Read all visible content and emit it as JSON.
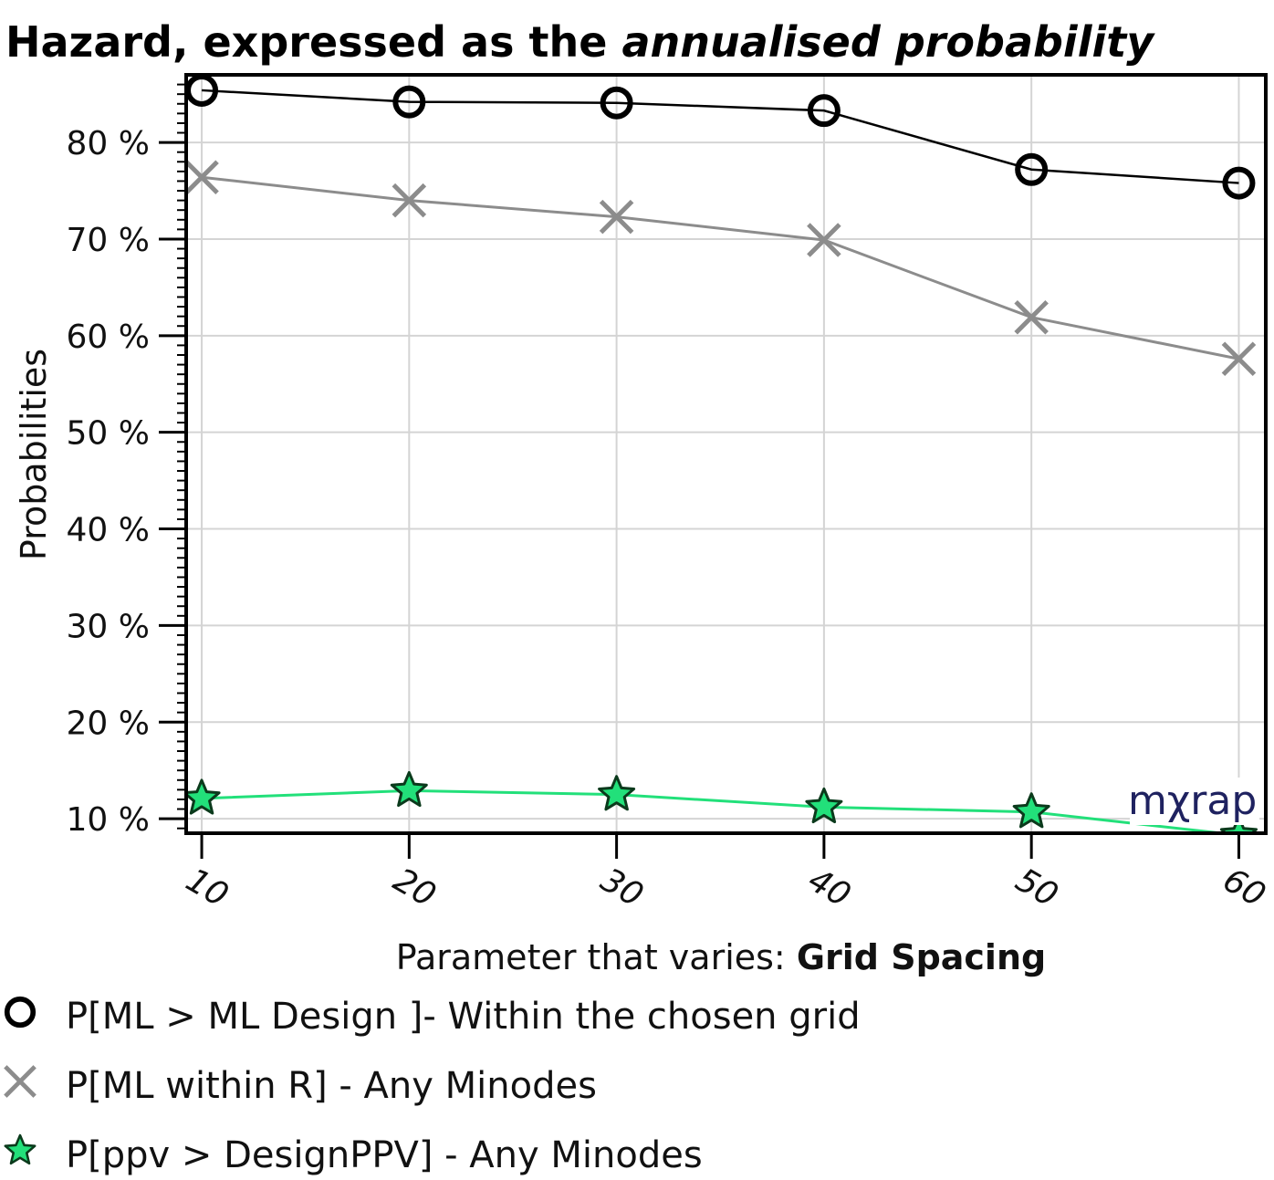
{
  "chart_data": {
    "type": "line",
    "title": "Hazard, expressed as the ",
    "title_italic": "annualised probability",
    "xlabel": "Parameter that varies: ",
    "xlabel_bold": "Grid Spacing",
    "ylabel": "Probabilities",
    "x": [
      10,
      20,
      30,
      40,
      50,
      60
    ],
    "xticks": [
      "10",
      "20",
      "30",
      "40",
      "50",
      "60"
    ],
    "xlim": [
      9.25,
      61.3
    ],
    "ylim": [
      8.5,
      87
    ],
    "yticks": [
      10,
      20,
      30,
      40,
      50,
      60,
      70,
      80
    ],
    "ytick_labels": [
      "10 %",
      "20 %",
      "30 %",
      "40 %",
      "50 %",
      "60 %",
      "70 %",
      "80 %"
    ],
    "grid": true,
    "legend_position": "bottom",
    "series": [
      {
        "name": "P[ML > ML Design ]- Within the chosen grid",
        "marker": "circle",
        "color": "#000000",
        "values": [
          85.4,
          84.2,
          84.1,
          83.3,
          77.2,
          75.8
        ]
      },
      {
        "name": "P[ML within R] - Any Minodes",
        "marker": "x",
        "color": "#8c8c8c",
        "values": [
          76.4,
          74.0,
          72.3,
          69.9,
          61.9,
          57.6
        ]
      },
      {
        "name": "P[ppv > DesignPPV] - Any Minodes",
        "marker": "star",
        "color": "#22e07a",
        "values": [
          12.1,
          12.9,
          12.5,
          11.2,
          10.7,
          8.3
        ]
      }
    ],
    "watermark": "mχrap"
  }
}
